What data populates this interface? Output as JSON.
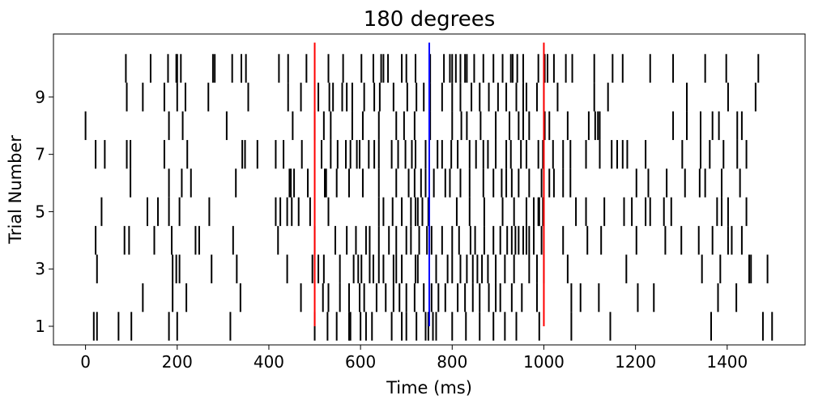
{
  "chart_data": {
    "type": "raster",
    "title": "180 degrees",
    "xlabel": "Time (ms)",
    "ylabel": "Trial Number",
    "xlim": [
      -70,
      1570
    ],
    "ylim": [
      0.35,
      11.2
    ],
    "xticks": [
      0,
      200,
      400,
      600,
      800,
      1000,
      1200,
      1400
    ],
    "xtick_labels": [
      "0",
      "200",
      "400",
      "600",
      "800",
      "1000",
      "1200",
      "1400"
    ],
    "yticks": [
      1,
      3,
      5,
      7,
      9
    ],
    "ytick_labels": [
      "1",
      "3",
      "5",
      "7",
      "9"
    ],
    "grid": false,
    "spike_color": "#000000",
    "markers": [
      {
        "x": 500,
        "y_range": [
          1,
          10.9
        ],
        "color": "#ff0000"
      },
      {
        "x": 750,
        "y_range": [
          1,
          10.9
        ],
        "color": "#0000ff"
      },
      {
        "x": 1000,
        "y_range": [
          1,
          10.9
        ],
        "color": "#ff0000"
      }
    ],
    "trials": [
      {
        "trial": 1,
        "spikes": [
          18,
          25,
          72,
          100,
          182,
          200,
          316,
          500,
          528,
          548,
          575,
          578,
          600,
          612,
          625,
          668,
          690,
          700,
          722,
          742,
          748,
          758,
          765,
          800,
          830,
          860,
          890,
          915,
          940,
          990,
          1060,
          1145,
          1365,
          1478,
          1498
        ]
      },
      {
        "trial": 2,
        "spikes": [
          125,
          190,
          220,
          338,
          470,
          518,
          530,
          555,
          575,
          598,
          608,
          635,
          655,
          672,
          685,
          700,
          718,
          738,
          755,
          770,
          785,
          812,
          828,
          845,
          860,
          880,
          895,
          905,
          930,
          952,
          985,
          1060,
          1080,
          1120,
          1205,
          1240,
          1380,
          1420
        ]
      },
      {
        "trial": 3,
        "spikes": [
          25,
          190,
          198,
          205,
          275,
          330,
          440,
          495,
          508,
          520,
          555,
          585,
          595,
          602,
          620,
          628,
          640,
          650,
          672,
          678,
          690,
          720,
          725,
          750,
          765,
          790,
          800,
          818,
          832,
          845,
          855,
          865,
          878,
          895,
          915,
          935,
          968,
          985,
          1000,
          1052,
          1180,
          1345,
          1385,
          1448,
          1452,
          1488
        ]
      },
      {
        "trial": 4,
        "spikes": [
          22,
          85,
          95,
          150,
          188,
          240,
          248,
          322,
          420,
          500,
          545,
          570,
          590,
          612,
          620,
          640,
          662,
          678,
          700,
          710,
          728,
          745,
          755,
          778,
          800,
          815,
          840,
          850,
          870,
          890,
          905,
          920,
          930,
          938,
          945,
          955,
          962,
          968,
          978,
          995,
          1042,
          1095,
          1125,
          1202,
          1265,
          1300,
          1338,
          1368,
          1402,
          1410,
          1432
        ]
      },
      {
        "trial": 5,
        "spikes": [
          35,
          135,
          158,
          182,
          205,
          270,
          415,
          425,
          440,
          450,
          465,
          490,
          530,
          640,
          650,
          670,
          690,
          710,
          720,
          725,
          735,
          748,
          810,
          838,
          870,
          910,
          935,
          962,
          978,
          988,
          990,
          998,
          1000,
          1070,
          1092,
          1132,
          1175,
          1192,
          1222,
          1232,
          1262,
          1278,
          1378,
          1388,
          1402,
          1442
        ]
      },
      {
        "trial": 6,
        "spikes": [
          98,
          182,
          210,
          230,
          328,
          445,
          448,
          455,
          485,
          522,
          525,
          548,
          575,
          605,
          640,
          678,
          705,
          718,
          732,
          742,
          760,
          785,
          795,
          818,
          838,
          868,
          890,
          908,
          918,
          930,
          945,
          968,
          995,
          1012,
          1022,
          1042,
          1058,
          1202,
          1228,
          1268,
          1308,
          1340,
          1352,
          1388,
          1428
        ]
      },
      {
        "trial": 7,
        "spikes": [
          22,
          42,
          90,
          98,
          172,
          222,
          342,
          348,
          375,
          415,
          432,
          472,
          515,
          535,
          550,
          568,
          578,
          592,
          598,
          618,
          630,
          640,
          668,
          682,
          698,
          712,
          720,
          742,
          768,
          778,
          798,
          812,
          838,
          852,
          868,
          878,
          895,
          918,
          928,
          950,
          962,
          988,
          998,
          1020,
          1042,
          1058,
          1092,
          1122,
          1148,
          1160,
          1172,
          1182,
          1222,
          1302,
          1342,
          1362,
          1392,
          1422,
          1442
        ]
      },
      {
        "trial": 8,
        "spikes": [
          0,
          182,
          212,
          308,
          452,
          500,
          520,
          535,
          582,
          605,
          640,
          678,
          695,
          718,
          752,
          800,
          820,
          832,
          862,
          895,
          925,
          945,
          955,
          968,
          1002,
          1012,
          1052,
          1098,
          1112,
          1118,
          1122,
          1282,
          1312,
          1342,
          1368,
          1382,
          1422,
          1432
        ]
      },
      {
        "trial": 9,
        "spikes": [
          90,
          125,
          172,
          200,
          218,
          268,
          355,
          442,
          470,
          508,
          532,
          540,
          560,
          570,
          582,
          608,
          630,
          642,
          672,
          702,
          722,
          738,
          752,
          778,
          800,
          818,
          842,
          860,
          880,
          900,
          918,
          940,
          955,
          962,
          985,
          1000,
          1030,
          1110,
          1140,
          1312,
          1402,
          1462
        ]
      },
      {
        "trial": 10,
        "spikes": [
          88,
          142,
          180,
          198,
          200,
          208,
          278,
          282,
          320,
          340,
          350,
          422,
          442,
          482,
          530,
          562,
          602,
          628,
          645,
          650,
          660,
          690,
          700,
          720,
          752,
          782,
          795,
          800,
          808,
          818,
          828,
          832,
          848,
          868,
          890,
          910,
          928,
          932,
          942,
          955,
          988,
          1002,
          1008,
          1022,
          1048,
          1062,
          1110,
          1150,
          1172,
          1232,
          1282,
          1352,
          1398,
          1468
        ]
      }
    ]
  }
}
